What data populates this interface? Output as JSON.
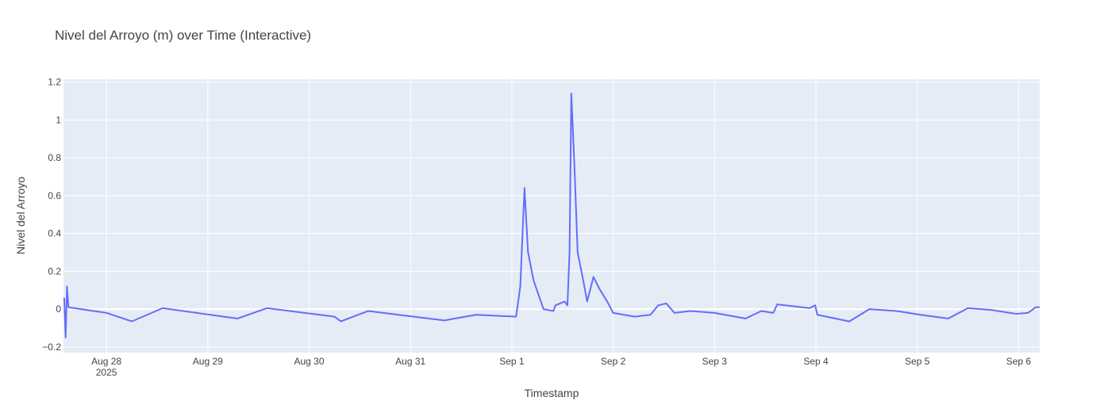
{
  "chart_data": {
    "type": "line",
    "title": "Nivel del Arroyo (m) over Time (Interactive)",
    "x_label": "Timestamp",
    "y_label": "Nivel del Arroyo",
    "x_year_label": "2025",
    "x": [
      "2025-08-27T14:00",
      "2025-08-27T14:20",
      "2025-08-27T14:40",
      "2025-08-27T15:00",
      "2025-08-28T00:00",
      "2025-08-28T06:00",
      "2025-08-28T13:20",
      "2025-08-29T07:00",
      "2025-08-29T14:00",
      "2025-08-30T06:00",
      "2025-08-30T07:30",
      "2025-08-30T14:00",
      "2025-08-31T08:00",
      "2025-08-31T15:30",
      "2025-09-01T01:00",
      "2025-09-01T02:00",
      "2025-09-01T03:00",
      "2025-09-01T03:50",
      "2025-09-01T05:10",
      "2025-09-01T07:30",
      "2025-09-01T09:50",
      "2025-09-01T10:20",
      "2025-09-01T12:30",
      "2025-09-01T13:10",
      "2025-09-01T13:40",
      "2025-09-01T14:05",
      "2025-09-01T14:50",
      "2025-09-01T15:35",
      "2025-09-01T16:55",
      "2025-09-01T17:50",
      "2025-09-01T18:10",
      "2025-09-01T19:20",
      "2025-09-01T20:40",
      "2025-09-01T22:35",
      "2025-09-02T00:00",
      "2025-09-02T05:05",
      "2025-09-02T08:50",
      "2025-09-02T10:40",
      "2025-09-02T12:35",
      "2025-09-02T14:30",
      "2025-09-02T18:15",
      "2025-09-03T00:00",
      "2025-09-03T07:20",
      "2025-09-03T11:05",
      "2025-09-03T13:55",
      "2025-09-03T14:50",
      "2025-09-03T22:30",
      "2025-09-03T23:50",
      "2025-09-04T00:20",
      "2025-09-04T07:55",
      "2025-09-04T12:40",
      "2025-09-04T19:10",
      "2025-09-05T00:45",
      "2025-09-05T07:20",
      "2025-09-05T12:00",
      "2025-09-05T17:40",
      "2025-09-05T23:25",
      "2025-09-06T02:15",
      "2025-09-06T04:05",
      "2025-09-06T05:00"
    ],
    "series": [
      {
        "name": "Nivel del Arroyo",
        "color": "#636efa",
        "values": [
          0.06,
          -0.15,
          0.12,
          0.01,
          -0.02,
          -0.065,
          0.005,
          -0.05,
          0.005,
          -0.04,
          -0.065,
          -0.01,
          -0.06,
          -0.03,
          -0.04,
          0.12,
          0.64,
          0.3,
          0.15,
          0.0,
          -0.01,
          0.02,
          0.04,
          0.02,
          0.3,
          1.14,
          0.75,
          0.3,
          0.15,
          0.04,
          0.07,
          0.17,
          0.11,
          0.04,
          -0.02,
          -0.04,
          -0.03,
          0.02,
          0.03,
          -0.02,
          -0.01,
          -0.02,
          -0.05,
          -0.01,
          -0.02,
          0.025,
          0.005,
          0.02,
          -0.03,
          -0.065,
          0.0,
          -0.01,
          -0.03,
          -0.05,
          0.005,
          -0.005,
          -0.025,
          -0.02,
          0.01,
          0.01
        ]
      }
    ],
    "xlim": [
      "2025-08-27T13:50",
      "2025-09-06T05:00"
    ],
    "xticks": [
      {
        "value": "2025-08-28T00:00",
        "label": "Aug 28"
      },
      {
        "value": "2025-08-29T00:00",
        "label": "Aug 29"
      },
      {
        "value": "2025-08-30T00:00",
        "label": "Aug 30"
      },
      {
        "value": "2025-08-31T00:00",
        "label": "Aug 31"
      },
      {
        "value": "2025-09-01T00:00",
        "label": "Sep 1"
      },
      {
        "value": "2025-09-02T00:00",
        "label": "Sep 2"
      },
      {
        "value": "2025-09-03T00:00",
        "label": "Sep 3"
      },
      {
        "value": "2025-09-04T00:00",
        "label": "Sep 4"
      },
      {
        "value": "2025-09-05T00:00",
        "label": "Sep 5"
      },
      {
        "value": "2025-09-06T00:00",
        "label": "Sep 6"
      }
    ],
    "ylim": [
      -0.23,
      1.215
    ],
    "yticks": [
      {
        "value": -0.2,
        "label": "−0.2"
      },
      0,
      0.2,
      0.4,
      0.6,
      0.8,
      1,
      1.2
    ],
    "grid": true,
    "plot_bg": "#e5ecf6"
  }
}
